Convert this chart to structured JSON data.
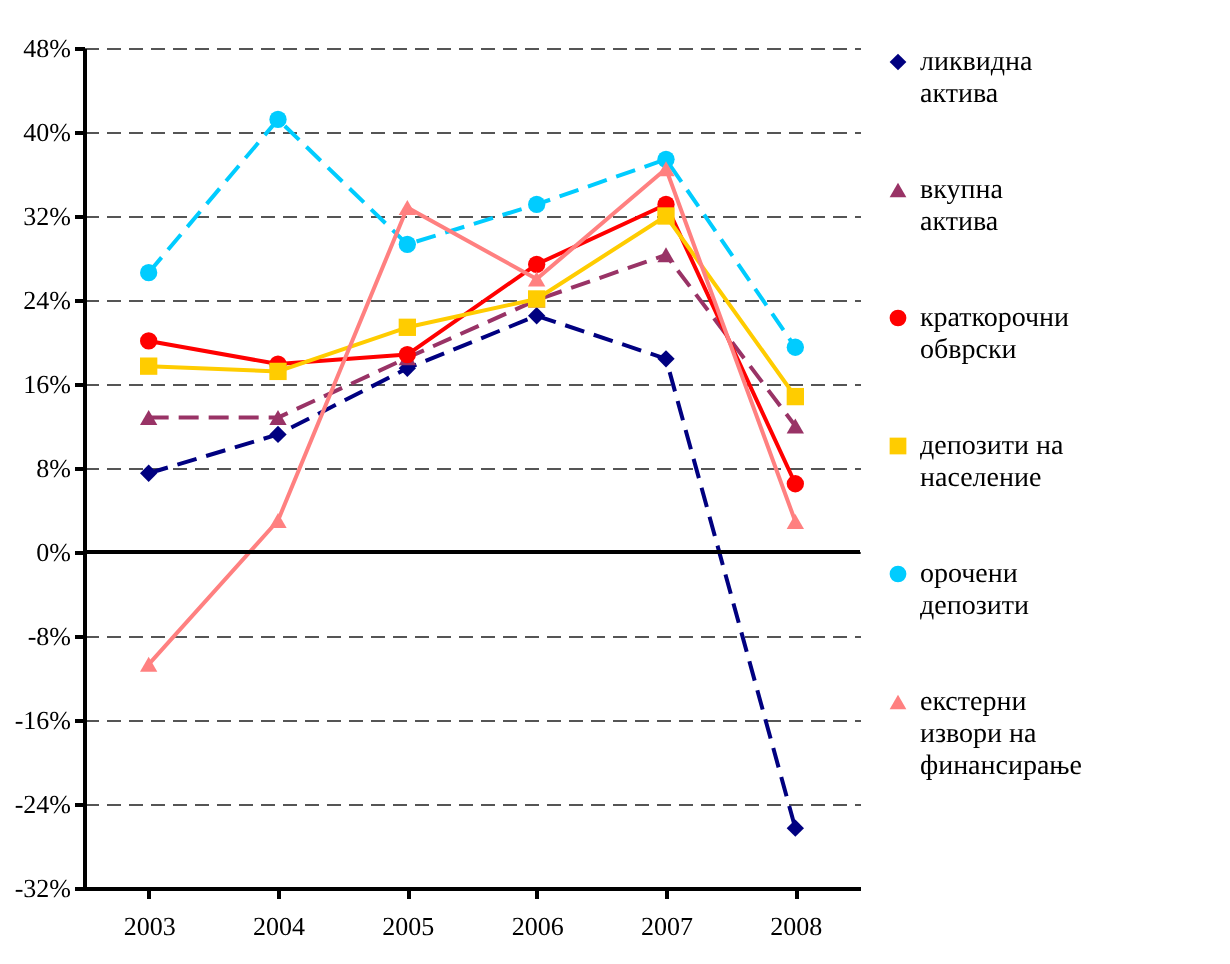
{
  "chart_data": {
    "type": "line",
    "categories": [
      "2003",
      "2004",
      "2005",
      "2006",
      "2007",
      "2008"
    ],
    "ylim": [
      -32,
      48
    ],
    "yticks": [
      {
        "value": -32,
        "label": "-32%"
      },
      {
        "value": -24,
        "label": "-24%"
      },
      {
        "value": -16,
        "label": "-16%"
      },
      {
        "value": -8,
        "label": "-8%"
      },
      {
        "value": 0,
        "label": "0%"
      },
      {
        "value": 8,
        "label": "8%"
      },
      {
        "value": 16,
        "label": "16%"
      },
      {
        "value": 24,
        "label": "24%"
      },
      {
        "value": 32,
        "label": "32%"
      },
      {
        "value": 40,
        "label": "40%"
      },
      {
        "value": 48,
        "label": "48%"
      }
    ],
    "grid": "y",
    "ref_lines": [
      {
        "axis": "y",
        "value": 0,
        "color": "#000000",
        "line_style": "solid"
      }
    ],
    "legend": "right",
    "series": [
      {
        "name": "ликвидна актива",
        "color": "#000080",
        "marker": "diamond",
        "line_style": "dashed",
        "values": [
          7.5,
          11.2,
          17.5,
          22.5,
          18.4,
          -26.3
        ]
      },
      {
        "name": "вкупна актива",
        "color": "#993366",
        "marker": "triangle",
        "line_style": "dashed",
        "values": [
          12.8,
          12.8,
          18.5,
          24,
          28.3,
          12
        ]
      },
      {
        "name": "краткорочни обврски",
        "color": "#ff0000",
        "marker": "circle",
        "line_style": "solid",
        "values": [
          20.1,
          17.9,
          18.8,
          27.4,
          33.1,
          6.5
        ]
      },
      {
        "name": "депозити на население",
        "color": "#ffcc00",
        "marker": "square",
        "line_style": "solid",
        "values": [
          17.7,
          17.2,
          21.4,
          24.1,
          32,
          14.8
        ]
      },
      {
        "name": "орочени депозити",
        "color": "#00ccff",
        "marker": "circle",
        "line_style": "dashed",
        "values": [
          26.6,
          41.2,
          29.3,
          33.1,
          37.4,
          19.5
        ]
      },
      {
        "name": "екстерни извори на финансирање",
        "color": "#ff8080",
        "marker": "triangle",
        "line_style": "solid",
        "values": [
          -10.7,
          3,
          32.8,
          26,
          36.5,
          2.9
        ]
      }
    ]
  }
}
